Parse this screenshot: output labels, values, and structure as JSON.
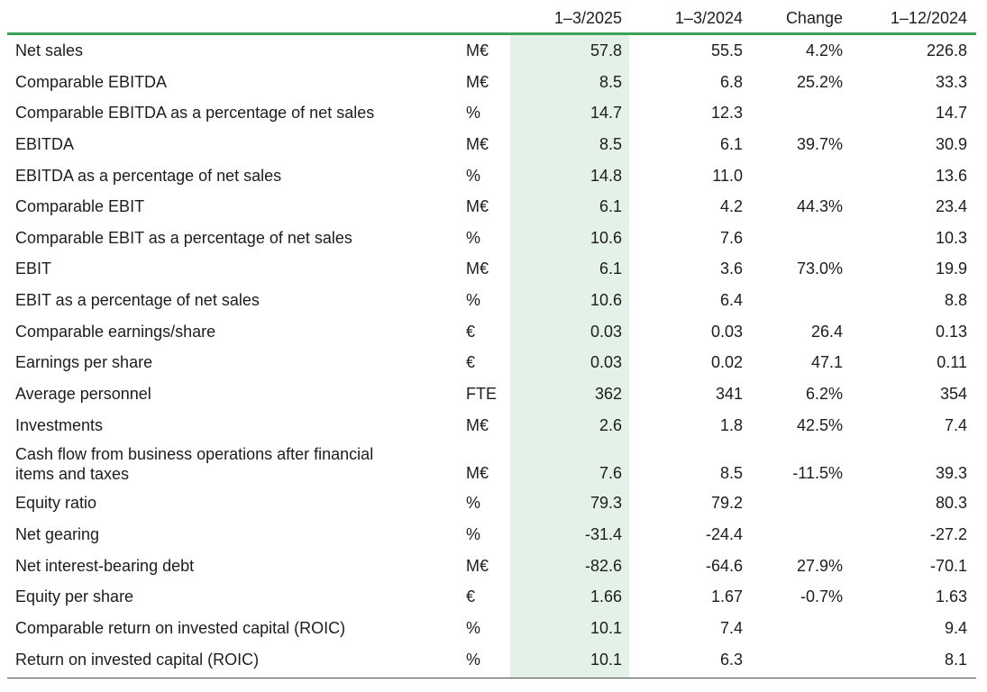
{
  "header": {
    "col1": "1–3/2025",
    "col2": "1–3/2024",
    "col3": "Change",
    "col4": "1–12/2024"
  },
  "rows": [
    {
      "label": "Net sales",
      "unit": "M€",
      "v1": "57.8",
      "v2": "55.5",
      "change": "4.2%",
      "v4": "226.8"
    },
    {
      "label": "Comparable EBITDA",
      "unit": "M€",
      "v1": "8.5",
      "v2": "6.8",
      "change": "25.2%",
      "v4": "33.3"
    },
    {
      "label": "Comparable EBITDA as a percentage of net sales",
      "unit": "%",
      "v1": "14.7",
      "v2": "12.3",
      "change": "",
      "v4": "14.7"
    },
    {
      "label": "EBITDA",
      "unit": "M€",
      "v1": "8.5",
      "v2": "6.1",
      "change": "39.7%",
      "v4": "30.9"
    },
    {
      "label": "EBITDA as a percentage of net sales",
      "unit": "%",
      "v1": "14.8",
      "v2": "11.0",
      "change": "",
      "v4": "13.6"
    },
    {
      "label": "Comparable EBIT",
      "unit": "M€",
      "v1": "6.1",
      "v2": "4.2",
      "change": "44.3%",
      "v4": "23.4"
    },
    {
      "label": "Comparable EBIT as a percentage of net sales",
      "unit": "%",
      "v1": "10.6",
      "v2": "7.6",
      "change": "",
      "v4": "10.3"
    },
    {
      "label": "EBIT",
      "unit": "M€",
      "v1": "6.1",
      "v2": "3.6",
      "change": "73.0%",
      "v4": "19.9"
    },
    {
      "label": "EBIT as a percentage of net sales",
      "unit": "%",
      "v1": "10.6",
      "v2": "6.4",
      "change": "",
      "v4": "8.8"
    },
    {
      "label": "Comparable earnings/share",
      "unit": "€",
      "v1": "0.03",
      "v2": "0.03",
      "change": "26.4",
      "v4": "0.13"
    },
    {
      "label": "Earnings per share",
      "unit": "€",
      "v1": "0.03",
      "v2": "0.02",
      "change": "47.1",
      "v4": "0.11"
    },
    {
      "label": "Average personnel",
      "unit": "FTE",
      "v1": "362",
      "v2": "341",
      "change": "6.2%",
      "v4": "354"
    },
    {
      "label": "Investments",
      "unit": "M€",
      "v1": "2.6",
      "v2": "1.8",
      "change": "42.5%",
      "v4": "7.4"
    },
    {
      "label": "Cash flow from business operations after financial items and taxes",
      "unit": "M€",
      "v1": "7.6",
      "v2": "8.5",
      "change": "-11.5%",
      "v4": "39.3"
    },
    {
      "label": "Equity ratio",
      "unit": "%",
      "v1": "79.3",
      "v2": "79.2",
      "change": "",
      "v4": "80.3"
    },
    {
      "label": "Net gearing",
      "unit": "%",
      "v1": "-31.4",
      "v2": "-24.4",
      "change": "",
      "v4": "-27.2"
    },
    {
      "label": "Net interest-bearing debt",
      "unit": "M€",
      "v1": "-82.6",
      "v2": "-64.6",
      "change": "27.9%",
      "v4": "-70.1"
    },
    {
      "label": "Equity per share",
      "unit": "€",
      "v1": "1.66",
      "v2": "1.67",
      "change": "-0.7%",
      "v4": "1.63"
    },
    {
      "label": "Comparable return on invested capital (ROIC)",
      "unit": "%",
      "v1": "10.1",
      "v2": "7.4",
      "change": "",
      "v4": "9.4"
    },
    {
      "label": "Return on invested capital (ROIC)",
      "unit": "%",
      "v1": "10.1",
      "v2": "6.3",
      "change": "",
      "v4": "8.1"
    }
  ],
  "colors": {
    "accent_rule": "#3fa05a",
    "highlight_column": "#e3f1e7"
  }
}
